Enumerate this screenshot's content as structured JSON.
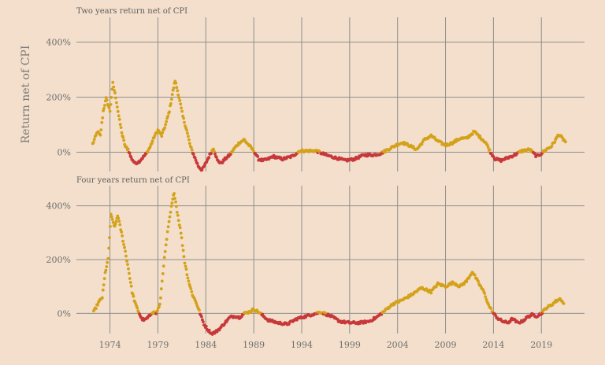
{
  "chart_data": {
    "type": "scatter",
    "ylabel": "Return net of CPI",
    "colors": {
      "positive": "#d4a21a",
      "negative": "#c8383a",
      "background": "#f3dfcb",
      "grid": "#8f8f8f"
    },
    "x_ticks": [
      1974,
      1979,
      1984,
      1989,
      1994,
      1999,
      2004,
      2009,
      2014,
      2019
    ],
    "xlim": [
      1970.5,
      2023.5
    ],
    "grid": true,
    "panels": [
      {
        "title": "Two years return net of CPI",
        "ylim": [
          -70,
          490
        ],
        "y_ticks": [
          0,
          200,
          400
        ],
        "y_tick_labels": [
          "0%",
          "200%",
          "400%"
        ],
        "keyframes": [
          [
            1972.2,
            30
          ],
          [
            1972.7,
            75
          ],
          [
            1973.0,
            60
          ],
          [
            1973.3,
            150
          ],
          [
            1973.6,
            195
          ],
          [
            1974.0,
            150
          ],
          [
            1974.3,
            250
          ],
          [
            1974.6,
            200
          ],
          [
            1975.0,
            115
          ],
          [
            1975.3,
            60
          ],
          [
            1975.6,
            20
          ],
          [
            1975.9,
            10
          ],
          [
            1976.2,
            -20
          ],
          [
            1976.6,
            -40
          ],
          [
            1977.0,
            -35
          ],
          [
            1977.4,
            -20
          ],
          [
            1977.8,
            -5
          ],
          [
            1978.2,
            20
          ],
          [
            1978.6,
            55
          ],
          [
            1979.0,
            80
          ],
          [
            1979.4,
            60
          ],
          [
            1979.8,
            100
          ],
          [
            1980.2,
            150
          ],
          [
            1980.5,
            210
          ],
          [
            1980.8,
            260
          ],
          [
            1981.2,
            200
          ],
          [
            1981.6,
            130
          ],
          [
            1982.0,
            80
          ],
          [
            1982.4,
            20
          ],
          [
            1982.8,
            -15
          ],
          [
            1983.2,
            -50
          ],
          [
            1983.6,
            -65
          ],
          [
            1984.0,
            -40
          ],
          [
            1984.4,
            -10
          ],
          [
            1984.8,
            15
          ],
          [
            1985.2,
            -30
          ],
          [
            1985.6,
            -40
          ],
          [
            1986.0,
            -25
          ],
          [
            1986.5,
            -10
          ],
          [
            1987.0,
            15
          ],
          [
            1987.5,
            35
          ],
          [
            1988.0,
            45
          ],
          [
            1988.5,
            25
          ],
          [
            1989.0,
            5
          ],
          [
            1989.5,
            -25
          ],
          [
            1990.0,
            -30
          ],
          [
            1990.5,
            -25
          ],
          [
            1991.0,
            -15
          ],
          [
            1992.0,
            -25
          ],
          [
            1993.0,
            -15
          ],
          [
            1993.8,
            5
          ],
          [
            1994.5,
            5
          ],
          [
            1995.5,
            5
          ],
          [
            1996.5,
            -10
          ],
          [
            1997.5,
            -20
          ],
          [
            1998.5,
            -30
          ],
          [
            1999.5,
            -25
          ],
          [
            2000.5,
            -10
          ],
          [
            2001.5,
            -10
          ],
          [
            2002.2,
            -5
          ],
          [
            2003.0,
            10
          ],
          [
            2003.8,
            25
          ],
          [
            2004.5,
            35
          ],
          [
            2005.2,
            25
          ],
          [
            2006.0,
            10
          ],
          [
            2006.8,
            45
          ],
          [
            2007.5,
            60
          ],
          [
            2008.2,
            40
          ],
          [
            2009.0,
            25
          ],
          [
            2009.8,
            35
          ],
          [
            2010.5,
            50
          ],
          [
            2011.2,
            50
          ],
          [
            2012.0,
            75
          ],
          [
            2012.6,
            55
          ],
          [
            2013.2,
            35
          ],
          [
            2013.7,
            0
          ],
          [
            2014.2,
            -25
          ],
          [
            2014.8,
            -30
          ],
          [
            2015.5,
            -20
          ],
          [
            2016.2,
            -10
          ],
          [
            2017.0,
            5
          ],
          [
            2017.8,
            10
          ],
          [
            2018.5,
            -15
          ],
          [
            2019.0,
            -5
          ],
          [
            2019.5,
            10
          ],
          [
            2020.0,
            20
          ],
          [
            2020.4,
            40
          ],
          [
            2020.8,
            65
          ],
          [
            2021.2,
            50
          ],
          [
            2021.6,
            35
          ]
        ]
      },
      {
        "title": "Four years return net of CPI",
        "ylim": [
          -75,
          475
        ],
        "y_ticks": [
          0,
          200,
          400
        ],
        "y_tick_labels": [
          "0%",
          "200%",
          "400%"
        ],
        "keyframes": [
          [
            1972.3,
            5
          ],
          [
            1972.8,
            40
          ],
          [
            1973.2,
            60
          ],
          [
            1973.5,
            150
          ],
          [
            1973.8,
            200
          ],
          [
            1974.1,
            365
          ],
          [
            1974.5,
            320
          ],
          [
            1974.8,
            365
          ],
          [
            1975.2,
            300
          ],
          [
            1975.6,
            230
          ],
          [
            1976.0,
            150
          ],
          [
            1976.3,
            80
          ],
          [
            1976.7,
            30
          ],
          [
            1977.0,
            5
          ],
          [
            1977.3,
            -20
          ],
          [
            1977.6,
            -25
          ],
          [
            1978.0,
            -15
          ],
          [
            1978.4,
            5
          ],
          [
            1978.8,
            0
          ],
          [
            1979.2,
            30
          ],
          [
            1979.6,
            180
          ],
          [
            1980.0,
            300
          ],
          [
            1980.4,
            395
          ],
          [
            1980.7,
            450
          ],
          [
            1981.0,
            380
          ],
          [
            1981.4,
            300
          ],
          [
            1981.8,
            190
          ],
          [
            1982.2,
            120
          ],
          [
            1982.6,
            70
          ],
          [
            1983.0,
            40
          ],
          [
            1983.4,
            0
          ],
          [
            1983.8,
            -40
          ],
          [
            1984.2,
            -60
          ],
          [
            1984.6,
            -75
          ],
          [
            1985.0,
            -70
          ],
          [
            1985.5,
            -55
          ],
          [
            1986.0,
            -35
          ],
          [
            1986.5,
            -15
          ],
          [
            1987.0,
            -10
          ],
          [
            1987.5,
            -15
          ],
          [
            1988.0,
            0
          ],
          [
            1988.5,
            5
          ],
          [
            1989.0,
            15
          ],
          [
            1989.5,
            5
          ],
          [
            1990.0,
            -10
          ],
          [
            1990.5,
            -25
          ],
          [
            1991.5,
            -35
          ],
          [
            1992.5,
            -40
          ],
          [
            1993.5,
            -20
          ],
          [
            1994.0,
            -15
          ],
          [
            1995.0,
            -5
          ],
          [
            1996.0,
            5
          ],
          [
            1997.0,
            -10
          ],
          [
            1998.0,
            -30
          ],
          [
            1999.0,
            -35
          ],
          [
            2000.0,
            -35
          ],
          [
            2001.0,
            -30
          ],
          [
            2001.8,
            -15
          ],
          [
            2002.5,
            5
          ],
          [
            2003.5,
            35
          ],
          [
            2004.5,
            50
          ],
          [
            2005.5,
            70
          ],
          [
            2006.5,
            95
          ],
          [
            2007.5,
            80
          ],
          [
            2008.2,
            110
          ],
          [
            2009.0,
            100
          ],
          [
            2009.8,
            115
          ],
          [
            2010.5,
            100
          ],
          [
            2011.2,
            120
          ],
          [
            2011.8,
            155
          ],
          [
            2012.5,
            110
          ],
          [
            2013.0,
            80
          ],
          [
            2013.5,
            30
          ],
          [
            2014.0,
            0
          ],
          [
            2014.5,
            -20
          ],
          [
            2015.0,
            -30
          ],
          [
            2015.5,
            -35
          ],
          [
            2016.0,
            -20
          ],
          [
            2016.5,
            -35
          ],
          [
            2017.0,
            -30
          ],
          [
            2017.5,
            -15
          ],
          [
            2018.0,
            -5
          ],
          [
            2018.5,
            -10
          ],
          [
            2019.0,
            0
          ],
          [
            2019.5,
            20
          ],
          [
            2020.0,
            30
          ],
          [
            2020.5,
            45
          ],
          [
            2021.0,
            55
          ],
          [
            2021.4,
            30
          ]
        ]
      }
    ]
  }
}
